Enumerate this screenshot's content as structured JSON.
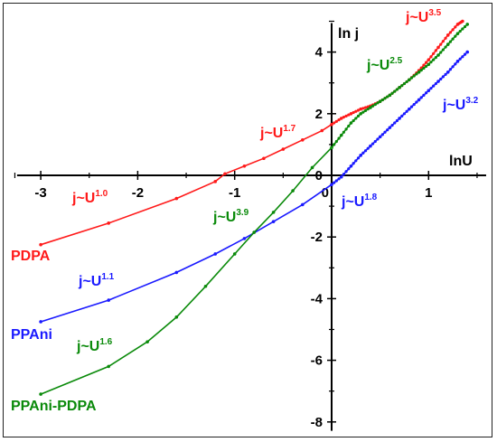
{
  "chart_data": {
    "type": "line",
    "xlabel": "lnU",
    "ylabel": "ln j",
    "xlim": [
      -3.3,
      1.5
    ],
    "ylim": [
      -8.2,
      5.0
    ],
    "x_ticks": [
      "-3",
      "-2",
      "-1",
      "0",
      "1"
    ],
    "y_ticks": [
      "-8",
      "-6",
      "-4",
      "-2",
      "0",
      "2",
      "4"
    ],
    "grid": false,
    "colors": {
      "PDPA": "#ff1a1a",
      "PPAni": "#1a1aff",
      "PPAni-PDPA": "#0a8a0a"
    },
    "series": [
      {
        "name": "PDPA",
        "color_key": "PDPA",
        "points": [
          [
            -3.0,
            -2.25
          ],
          [
            -2.3,
            -1.55
          ],
          [
            -1.6,
            -0.75
          ],
          [
            -1.2,
            -0.2
          ],
          [
            -1.1,
            0.05
          ],
          [
            -0.9,
            0.3
          ],
          [
            -0.7,
            0.55
          ],
          [
            -0.5,
            0.85
          ],
          [
            -0.3,
            1.15
          ],
          [
            -0.1,
            1.45
          ],
          [
            0.0,
            1.65
          ],
          [
            0.1,
            1.85
          ],
          [
            0.2,
            2.0
          ],
          [
            0.3,
            2.15
          ],
          [
            0.4,
            2.25
          ],
          [
            0.5,
            2.4
          ],
          [
            0.6,
            2.6
          ],
          [
            0.7,
            2.85
          ],
          [
            0.8,
            3.1
          ],
          [
            0.9,
            3.4
          ],
          [
            1.0,
            3.75
          ],
          [
            1.1,
            4.15
          ],
          [
            1.2,
            4.55
          ],
          [
            1.3,
            4.9
          ],
          [
            1.35,
            5.0
          ]
        ]
      },
      {
        "name": "PPAni",
        "color_key": "PPAni",
        "points": [
          [
            -3.0,
            -4.75
          ],
          [
            -2.3,
            -4.05
          ],
          [
            -1.6,
            -3.15
          ],
          [
            -1.2,
            -2.55
          ],
          [
            -0.9,
            -2.05
          ],
          [
            -0.6,
            -1.5
          ],
          [
            -0.3,
            -0.95
          ],
          [
            0.0,
            -0.3
          ],
          [
            0.1,
            -0.05
          ],
          [
            0.2,
            0.3
          ],
          [
            0.3,
            0.65
          ],
          [
            0.4,
            0.95
          ],
          [
            0.5,
            1.25
          ],
          [
            0.6,
            1.55
          ],
          [
            0.7,
            1.85
          ],
          [
            0.8,
            2.15
          ],
          [
            0.9,
            2.45
          ],
          [
            1.0,
            2.75
          ],
          [
            1.1,
            3.05
          ],
          [
            1.2,
            3.35
          ],
          [
            1.3,
            3.7
          ],
          [
            1.4,
            4.0
          ]
        ]
      },
      {
        "name": "PPAni-PDPA",
        "color_key": "PPAni-PDPA",
        "points": [
          [
            -3.0,
            -7.1
          ],
          [
            -2.3,
            -6.2
          ],
          [
            -1.9,
            -5.4
          ],
          [
            -1.6,
            -4.6
          ],
          [
            -1.3,
            -3.6
          ],
          [
            -1.0,
            -2.55
          ],
          [
            -0.8,
            -1.85
          ],
          [
            -0.6,
            -1.2
          ],
          [
            -0.4,
            -0.5
          ],
          [
            -0.2,
            0.25
          ],
          [
            0.0,
            0.9
          ],
          [
            0.1,
            1.3
          ],
          [
            0.2,
            1.7
          ],
          [
            0.3,
            2.0
          ],
          [
            0.4,
            2.2
          ],
          [
            0.5,
            2.4
          ],
          [
            0.6,
            2.6
          ],
          [
            0.7,
            2.85
          ],
          [
            0.8,
            3.1
          ],
          [
            0.9,
            3.35
          ],
          [
            1.0,
            3.6
          ],
          [
            1.1,
            3.9
          ],
          [
            1.2,
            4.25
          ],
          [
            1.3,
            4.6
          ],
          [
            1.4,
            4.9
          ]
        ]
      }
    ],
    "series_labels": [
      {
        "text": "PDPA",
        "color_key": "PDPA"
      },
      {
        "text": "PPAni",
        "color_key": "PPAni"
      },
      {
        "text": "PPAni-PDPA",
        "color_key": "PPAni-PDPA"
      }
    ],
    "annotations": [
      {
        "base": "j~U",
        "exp": "1.0",
        "color_key": "PDPA"
      },
      {
        "base": "j~U",
        "exp": "1.7",
        "color_key": "PDPA"
      },
      {
        "base": "j~U",
        "exp": "3.5",
        "color_key": "PDPA"
      },
      {
        "base": "j~U",
        "exp": "1.1",
        "color_key": "PPAni"
      },
      {
        "base": "j~U",
        "exp": "1.8",
        "color_key": "PPAni"
      },
      {
        "base": "j~U",
        "exp": "3.2",
        "color_key": "PPAni"
      },
      {
        "base": "j~U",
        "exp": "1.6",
        "color_key": "PPAni-PDPA"
      },
      {
        "base": "j~U",
        "exp": "3.9",
        "color_key": "PPAni-PDPA"
      },
      {
        "base": "j~U",
        "exp": "2.5",
        "color_key": "PPAni-PDPA"
      }
    ]
  }
}
